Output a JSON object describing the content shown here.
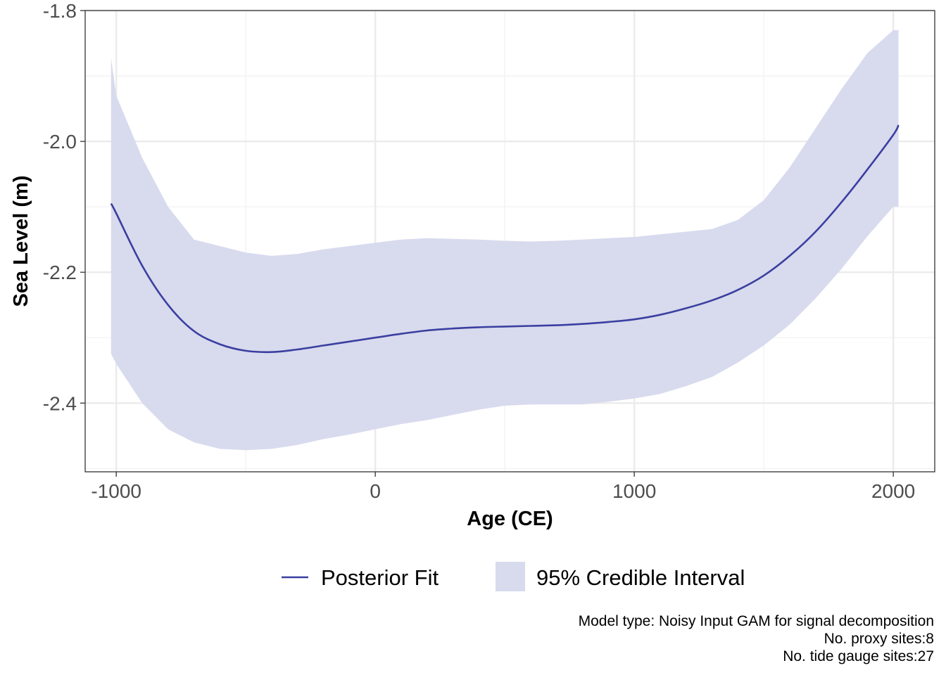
{
  "chart_data": {
    "type": "line",
    "xlabel": "Age (CE)",
    "ylabel": "Sea Level (m)",
    "xlim": [
      -1120,
      2160
    ],
    "ylim": [
      -2.505,
      -1.8
    ],
    "x_ticks": [
      -1000,
      0,
      1000,
      2000
    ],
    "x_tick_labels": [
      "-1000",
      "0",
      "1000",
      "2000"
    ],
    "y_ticks": [
      -2.4,
      -2.2,
      -2.0,
      -1.8
    ],
    "y_tick_labels": [
      "-2.4",
      "-2.2",
      "-2.0",
      "-1.8"
    ],
    "grid": true,
    "legend_position": "bottom",
    "colors": {
      "line": "#3a3fa0",
      "band": "#d8daee",
      "grid": "#ebebeb",
      "panel_border": "#333333"
    },
    "series": [
      {
        "name": "Posterior Fit",
        "kind": "line",
        "x": [
          -1020,
          -1000,
          -900,
          -800,
          -700,
          -600,
          -500,
          -400,
          -300,
          -200,
          -100,
          0,
          100,
          200,
          300,
          400,
          500,
          600,
          700,
          800,
          900,
          1000,
          1100,
          1200,
          1300,
          1400,
          1500,
          1600,
          1700,
          1800,
          1900,
          2000,
          2020
        ],
        "y": [
          -2.095,
          -2.11,
          -2.19,
          -2.25,
          -2.29,
          -2.31,
          -2.32,
          -2.322,
          -2.318,
          -2.312,
          -2.306,
          -2.3,
          -2.294,
          -2.289,
          -2.286,
          -2.284,
          -2.283,
          -2.282,
          -2.281,
          -2.279,
          -2.276,
          -2.272,
          -2.265,
          -2.255,
          -2.243,
          -2.227,
          -2.205,
          -2.175,
          -2.138,
          -2.093,
          -2.043,
          -1.99,
          -1.975
        ]
      },
      {
        "name": "95% Credible Interval",
        "kind": "band",
        "x": [
          -1020,
          -1000,
          -900,
          -800,
          -700,
          -600,
          -500,
          -400,
          -300,
          -200,
          -100,
          0,
          100,
          200,
          300,
          400,
          500,
          600,
          700,
          800,
          900,
          1000,
          1100,
          1200,
          1300,
          1400,
          1500,
          1600,
          1700,
          1800,
          1900,
          2000,
          2020
        ],
        "upper": [
          -1.873,
          -1.93,
          -2.025,
          -2.1,
          -2.15,
          -2.16,
          -2.17,
          -2.175,
          -2.172,
          -2.165,
          -2.16,
          -2.155,
          -2.15,
          -2.148,
          -2.149,
          -2.15,
          -2.152,
          -2.153,
          -2.152,
          -2.15,
          -2.148,
          -2.146,
          -2.142,
          -2.138,
          -2.134,
          -2.12,
          -2.09,
          -2.04,
          -1.98,
          -1.92,
          -1.865,
          -1.83,
          -1.83
        ],
        "lower": [
          -2.325,
          -2.34,
          -2.4,
          -2.44,
          -2.46,
          -2.47,
          -2.472,
          -2.47,
          -2.464,
          -2.455,
          -2.448,
          -2.44,
          -2.432,
          -2.426,
          -2.418,
          -2.41,
          -2.404,
          -2.402,
          -2.402,
          -2.402,
          -2.398,
          -2.393,
          -2.386,
          -2.374,
          -2.36,
          -2.338,
          -2.312,
          -2.28,
          -2.24,
          -2.195,
          -2.145,
          -2.1,
          -2.1
        ]
      }
    ],
    "legend": {
      "line_label": "Posterior Fit",
      "band_label": "95% Credible Interval"
    },
    "caption": [
      "Model type: Noisy Input GAM for signal decomposition",
      "No. proxy sites:8",
      "No. tide gauge sites:27"
    ]
  }
}
